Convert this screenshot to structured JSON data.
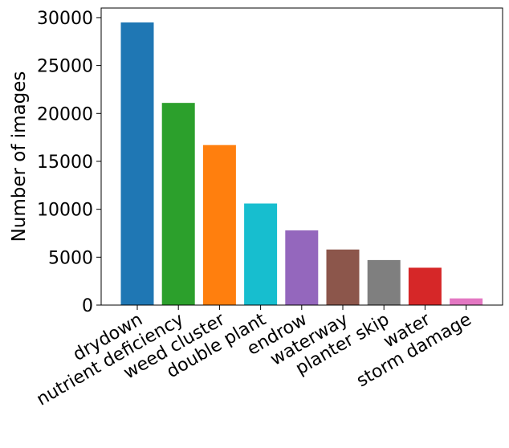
{
  "chart_data": {
    "type": "bar",
    "title": "",
    "xlabel": "",
    "ylabel": "Number of images",
    "ylim": [
      0,
      31000
    ],
    "yticks": [
      0,
      5000,
      10000,
      15000,
      20000,
      25000,
      30000
    ],
    "grid": false,
    "categories": [
      "drydown",
      "nutrient deficiency",
      "weed cluster",
      "double plant",
      "endrow",
      "waterway",
      "planter skip",
      "water",
      "storm damage"
    ],
    "values": [
      29500,
      21100,
      16700,
      10600,
      7800,
      5800,
      4700,
      3900,
      700
    ],
    "colors": [
      "#1f77b4",
      "#2ca02c",
      "#ff7f0e",
      "#17becf",
      "#9467bd",
      "#8c564b",
      "#7f7f7f",
      "#d62728",
      "#e377c2"
    ]
  }
}
